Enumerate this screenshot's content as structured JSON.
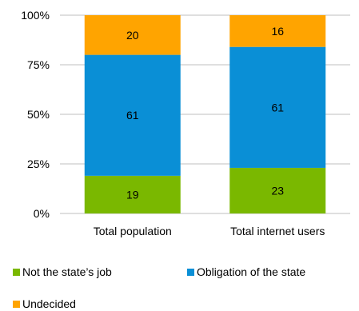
{
  "chart_data": {
    "type": "bar",
    "stacked": true,
    "categories": [
      "Total population",
      "Total internet users"
    ],
    "series": [
      {
        "name": "Not the state’s job",
        "color": "#7ab800",
        "values": [
          19,
          23
        ]
      },
      {
        "name": "Obligation of the state",
        "color": "#0a8fd6",
        "values": [
          61,
          61
        ]
      },
      {
        "name": "Undecided",
        "color": "#ffa400",
        "values": [
          20,
          16
        ]
      }
    ],
    "yticks": [
      "0%",
      "25%",
      "50%",
      "75%",
      "100%"
    ],
    "ylim": [
      0,
      100
    ],
    "grid": true,
    "legend_position": "bottom"
  }
}
